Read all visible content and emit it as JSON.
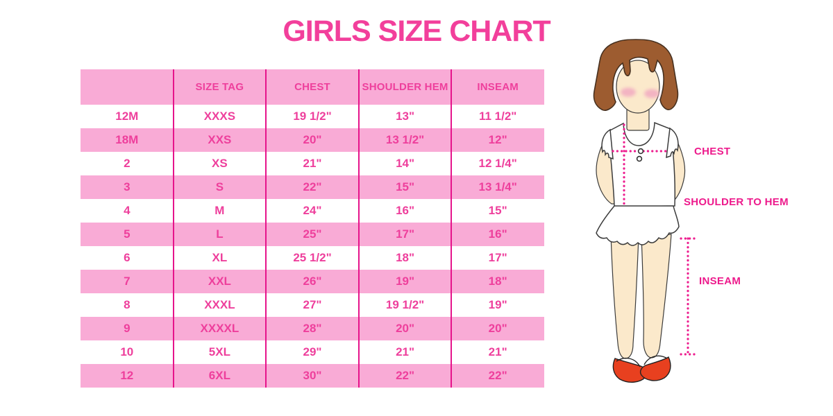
{
  "chart_data": {
    "type": "table",
    "title": "GIRLS SIZE CHART",
    "columns": [
      "",
      "SIZE TAG",
      "CHEST",
      "SHOULDER HEM",
      "INSEAM"
    ],
    "rows": [
      [
        "12M",
        "XXXS",
        "19 1/2\"",
        "13\"",
        "11 1/2\""
      ],
      [
        "18M",
        "XXS",
        "20\"",
        "13 1/2\"",
        "12\""
      ],
      [
        "2",
        "XS",
        "21\"",
        "14\"",
        "12 1/4\""
      ],
      [
        "3",
        "S",
        "22\"",
        "15\"",
        "13 1/4\""
      ],
      [
        "4",
        "M",
        "24\"",
        "16\"",
        "15\""
      ],
      [
        "5",
        "L",
        "25\"",
        "17\"",
        "16\""
      ],
      [
        "6",
        "XL",
        "25 1/2\"",
        "18\"",
        "17\""
      ],
      [
        "7",
        "XXL",
        "26\"",
        "19\"",
        "18\""
      ],
      [
        "8",
        "XXXL",
        "27\"",
        "19 1/2\"",
        "19\""
      ],
      [
        "9",
        "XXXXL",
        "28\"",
        "20\"",
        "20\""
      ],
      [
        "10",
        "5XL",
        "29\"",
        "21\"",
        "21\""
      ],
      [
        "12",
        "6XL",
        "30\"",
        "22\"",
        "22\""
      ]
    ],
    "layout": {
      "header_background": "pink",
      "row_stripes": [
        "white",
        "pink"
      ],
      "grid": "vertical-dividers-only"
    }
  },
  "diagram": {
    "chest_label": "CHEST",
    "shoulder_to_hem_label": "SHOULDER TO HEM",
    "inseam_label": "INSEAM"
  },
  "colors": {
    "title_pink": "#f23f9b",
    "text_pink": "#ee3f9c",
    "row_pink": "#f9abd6",
    "divider_magenta": "#e6138b",
    "label_magenta": "#ed1a8c",
    "dotted_magenta": "#ed1e8f",
    "hair_brown": "#9d5c30",
    "skin": "#fbe9cb",
    "blush": "#f3b3c2",
    "shoe_red": "#e8401f"
  }
}
